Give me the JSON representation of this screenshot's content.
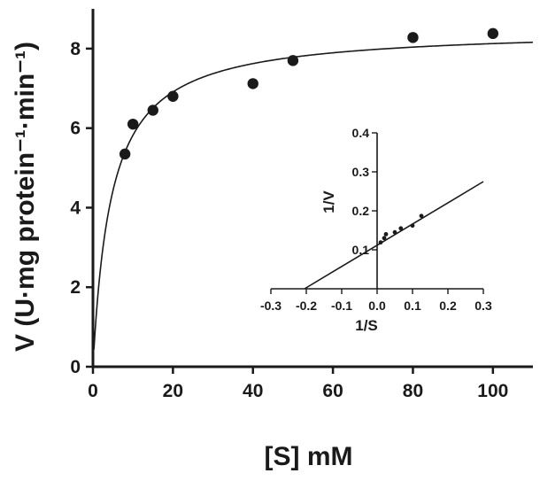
{
  "chart_data": [
    {
      "type": "scatter",
      "xlabel": "[S] mM",
      "ylabel": "V (U·mg protein⁻¹·min⁻¹)",
      "xlim": [
        0,
        110
      ],
      "ylim": [
        0,
        9
      ],
      "xticks": [
        0,
        20,
        40,
        60,
        80,
        100
      ],
      "yticks": [
        0,
        2,
        4,
        6,
        8
      ],
      "series": [
        {
          "x": [
            8,
            10,
            15,
            20,
            40,
            50,
            80,
            100
          ],
          "y": [
            5.35,
            6.1,
            6.45,
            6.8,
            7.12,
            7.7,
            8.28,
            8.38
          ]
        }
      ],
      "fit_curve": {
        "model": "michaelis-menten",
        "vmax": 8.5,
        "km": 4.6
      }
    },
    {
      "type": "scatter",
      "inset": true,
      "xlabel": "1/S",
      "ylabel": "1/V",
      "xlim": [
        -0.3,
        0.3
      ],
      "ylim": [
        0,
        0.4
      ],
      "xticks": [
        -0.3,
        -0.2,
        -0.1,
        0.0,
        0.1,
        0.2,
        0.3
      ],
      "yticks": [
        0.1,
        0.2,
        0.3,
        0.4
      ],
      "series": [
        {
          "x": [
            0.01,
            0.02,
            0.025,
            0.05,
            0.067,
            0.1,
            0.125
          ],
          "y": [
            0.119,
            0.13,
            0.14,
            0.145,
            0.155,
            0.162,
            0.187
          ]
        }
      ],
      "fit_line": {
        "x": [
          -0.205,
          0.3
        ],
        "y": [
          0.0,
          0.275
        ]
      }
    }
  ]
}
